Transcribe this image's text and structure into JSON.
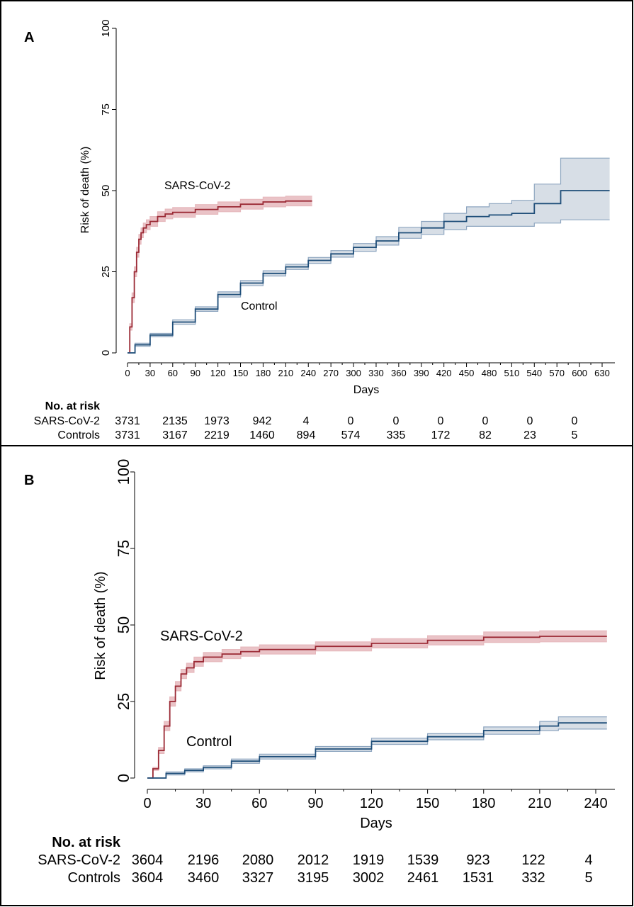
{
  "figure": {
    "panels": [
      {
        "panel_label": "A",
        "ylabel": "Risk of death (%)",
        "xlabel": "Days",
        "risk_table": {
          "title": "No. at risk",
          "rows": [
            {
              "label": "SARS-CoV-2",
              "values": [
                "3731",
                "2135",
                "1973",
                "942",
                "4",
                "0",
                "0",
                "0",
                "0",
                "0",
                "0"
              ]
            },
            {
              "label": "Controls",
              "values": [
                "3731",
                "3167",
                "2219",
                "1460",
                "894",
                "574",
                "335",
                "172",
                "82",
                "23",
                "5"
              ]
            }
          ]
        }
      },
      {
        "panel_label": "B",
        "ylabel": "Risk of death (%)",
        "xlabel": "Days",
        "risk_table": {
          "title": "No. at risk",
          "rows": [
            {
              "label": "SARS-CoV-2",
              "values": [
                "3604",
                "2196",
                "2080",
                "2012",
                "1919",
                "1539",
                "923",
                "122",
                "4"
              ]
            },
            {
              "label": "Controls",
              "values": [
                "3604",
                "3460",
                "3327",
                "3195",
                "3002",
                "2461",
                "1531",
                "332",
                "5"
              ]
            }
          ]
        }
      }
    ],
    "colors": {
      "sars": "#9b2a35",
      "sars_band": "#e6b9bd",
      "control": "#1f4e79",
      "control_band": "#c9d3de",
      "control_band_edge": "#8ea6c0"
    }
  },
  "chart_data": [
    {
      "type": "line",
      "panel": "A",
      "xlabel": "Days",
      "ylabel": "Risk of death (%)",
      "xlim": [
        0,
        640
      ],
      "ylim": [
        0,
        100
      ],
      "xticks": [
        0,
        30,
        60,
        90,
        120,
        150,
        180,
        210,
        240,
        270,
        300,
        330,
        360,
        390,
        420,
        450,
        480,
        510,
        540,
        570,
        600,
        630
      ],
      "yticks": [
        0,
        25,
        50,
        75,
        100
      ],
      "series": [
        {
          "name": "SARS-CoV-2",
          "x": [
            0,
            3,
            6,
            9,
            12,
            15,
            18,
            21,
            25,
            30,
            40,
            50,
            60,
            90,
            120,
            150,
            180,
            210,
            245
          ],
          "y": [
            0,
            8,
            17,
            25,
            31,
            35,
            37,
            38.5,
            39.5,
            40.5,
            42,
            42.8,
            43.3,
            44.2,
            45,
            45.8,
            46.5,
            46.8,
            46.8
          ],
          "lower": [
            0,
            7,
            15.5,
            23.5,
            29.5,
            33.5,
            35.5,
            37,
            38,
            39,
            40.5,
            41.3,
            41.8,
            42.7,
            43.5,
            44.3,
            45,
            45.3,
            45.3
          ],
          "upper": [
            0,
            9,
            18.5,
            26.5,
            32.5,
            36.5,
            38.5,
            40,
            41,
            42,
            43.5,
            44.3,
            44.8,
            45.7,
            46.5,
            47.3,
            48,
            48.3,
            48.3
          ]
        },
        {
          "name": "Control",
          "x": [
            0,
            10,
            30,
            60,
            90,
            120,
            150,
            180,
            210,
            240,
            270,
            300,
            330,
            360,
            390,
            420,
            450,
            480,
            510,
            525,
            540,
            575,
            610,
            640
          ],
          "y": [
            0,
            2.5,
            5.5,
            9.5,
            13.5,
            18,
            21.5,
            24.5,
            26.5,
            28.5,
            30.5,
            32.5,
            34.5,
            37,
            38.5,
            40.5,
            42,
            42.5,
            43,
            43,
            46,
            50,
            50,
            50
          ],
          "lower": [
            0,
            2,
            5,
            8.8,
            12.8,
            17.2,
            20.7,
            23.7,
            25.7,
            27.6,
            29.5,
            31.3,
            33.2,
            35.3,
            36.5,
            38,
            39,
            39,
            39,
            39,
            40,
            41,
            41,
            41
          ],
          "upper": [
            0,
            3,
            6,
            10.2,
            14.2,
            18.8,
            22.3,
            25.3,
            27.3,
            29.4,
            31.5,
            33.7,
            35.8,
            38.7,
            40.5,
            43,
            45,
            46,
            47,
            47,
            52,
            60,
            60,
            60
          ]
        }
      ]
    },
    {
      "type": "line",
      "panel": "B",
      "xlabel": "Days",
      "ylabel": "Risk of death (%)",
      "xlim": [
        0,
        250
      ],
      "ylim": [
        0,
        100
      ],
      "xticks": [
        0,
        30,
        60,
        90,
        120,
        150,
        180,
        210,
        240
      ],
      "yticks": [
        0,
        25,
        50,
        75,
        100
      ],
      "series": [
        {
          "name": "SARS-CoV-2",
          "x": [
            0,
            3,
            6,
            9,
            12,
            15,
            18,
            21,
            25,
            30,
            40,
            50,
            60,
            90,
            120,
            150,
            180,
            210,
            246
          ],
          "y": [
            0,
            3,
            9,
            17,
            25,
            30,
            34,
            36,
            38,
            39.5,
            40.5,
            41.3,
            42,
            43,
            44,
            45,
            46,
            46.3,
            46.3
          ],
          "lower": [
            0,
            2.5,
            8,
            15.5,
            23.5,
            28.5,
            32.5,
            34.5,
            36.5,
            38,
            39,
            39.8,
            40.5,
            41.5,
            42.5,
            43.5,
            44.3,
            44.5,
            44.5
          ],
          "upper": [
            0,
            3.5,
            10,
            18.5,
            26.5,
            31.5,
            35.5,
            37.5,
            39.5,
            41,
            42,
            42.8,
            43.5,
            44.5,
            45.5,
            46.5,
            47.7,
            48.1,
            48.1
          ]
        },
        {
          "name": "Control",
          "x": [
            0,
            10,
            20,
            30,
            45,
            60,
            90,
            120,
            150,
            180,
            210,
            220,
            246
          ],
          "y": [
            0,
            1.5,
            2.5,
            3.5,
            5.5,
            7,
            9.5,
            12,
            13.5,
            15.5,
            17,
            18,
            18
          ],
          "lower": [
            0,
            1,
            2,
            3,
            4.8,
            6.2,
            8.7,
            11,
            12.5,
            14.3,
            15.5,
            16,
            16
          ],
          "upper": [
            0,
            2,
            3,
            4,
            6.2,
            7.8,
            10.3,
            13,
            14.5,
            16.7,
            18.5,
            20,
            20
          ]
        }
      ]
    }
  ]
}
